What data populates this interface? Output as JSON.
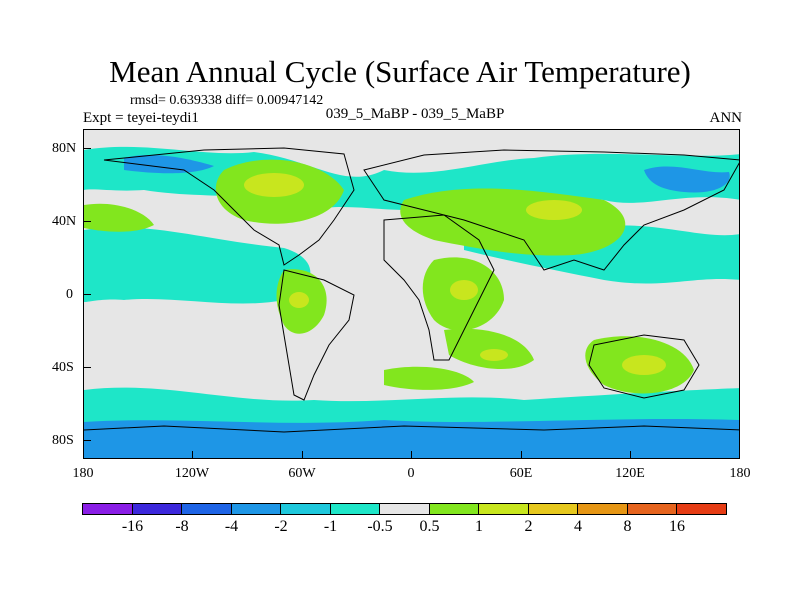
{
  "title": "Mean Annual Cycle (Surface Air Temperature)",
  "stats": "rmsd= 0.639338 diff= 0.00947142",
  "expt": "Expt = teyei-teydi1",
  "case": "039_5_MaBP - 039_5_MaBP",
  "season": "ANN",
  "lat_labels": [
    "80N",
    "40N",
    "0",
    "40S",
    "80S"
  ],
  "lon_labels": [
    "180",
    "120W",
    "60W",
    "0",
    "60E",
    "120E",
    "180"
  ],
  "colorbar": {
    "labels": [
      "-16",
      "-8",
      "-4",
      "-2",
      "-1",
      "-0.5",
      "0.5",
      "1",
      "2",
      "4",
      "8",
      "16"
    ],
    "colors": [
      "#8a1ee6",
      "#3c28dc",
      "#1e64e6",
      "#1e96e6",
      "#1ec8dc",
      "#1ee6c8",
      "#e6e6e6",
      "#82e61e",
      "#c8e61e",
      "#e6c81e",
      "#e69614",
      "#e6641e",
      "#e63c14"
    ]
  }
}
